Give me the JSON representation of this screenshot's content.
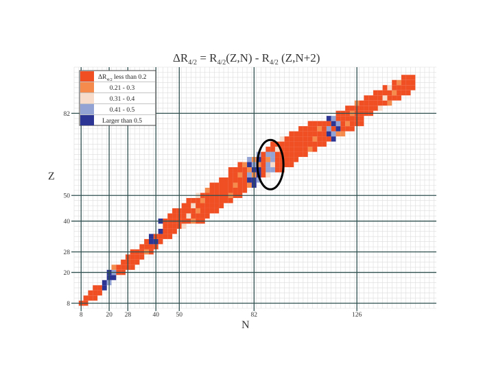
{
  "chart_data": {
    "type": "heatmap",
    "title": {
      "lhs": "ΔR",
      "lhs_sub": "4/2",
      "eq": " = R",
      "r1_sub": "4/2",
      "r1_args": "(Z,N) - R",
      "r2_sub": "4/2",
      "r2_args": " (Z,N+2)"
    },
    "xlabel": "N",
    "ylabel": "Z",
    "xlim": [
      5,
      160
    ],
    "ylim": [
      6,
      100
    ],
    "magic_x": [
      8,
      20,
      28,
      40,
      50,
      82,
      126
    ],
    "magic_y": [
      8,
      20,
      28,
      40,
      50,
      82
    ],
    "x_tick_labels": [
      "8",
      "20",
      "28",
      "40",
      "50",
      "82",
      "126"
    ],
    "y_tick_labels": [
      "8",
      "20",
      "28",
      "40",
      "50",
      "82"
    ],
    "legend": [
      {
        "label": "less than 0.2",
        "prefix": "ΔR",
        "sub": "4/2",
        "color": "#f04e23"
      },
      {
        "label": "0.21 - 0.3",
        "color": "#f58b4c"
      },
      {
        "label": "0.31 - 0.4",
        "color": "#f7dccc"
      },
      {
        "label": "0.41 - 0.5",
        "color": "#93a3d4"
      },
      {
        "label": "Larger than 0.5",
        "color": "#2c3593"
      }
    ],
    "highlight": {
      "n": 89,
      "z": 62
    }
  }
}
